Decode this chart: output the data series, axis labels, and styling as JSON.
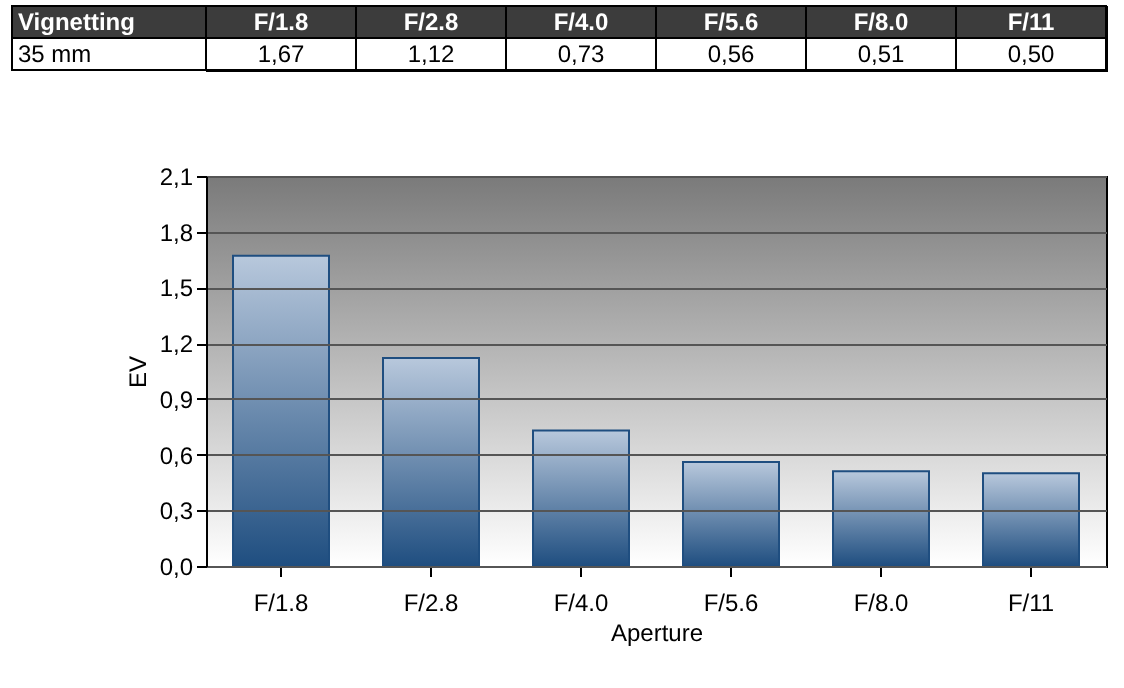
{
  "chart_data": {
    "type": "bar",
    "categories": [
      "F/1.8",
      "F/2.8",
      "F/4.0",
      "F/5.6",
      "F/8.0",
      "F/11"
    ],
    "values": [
      1.67,
      1.12,
      0.73,
      0.56,
      0.51,
      0.5
    ],
    "value_labels": [
      "1,67",
      "1,12",
      "0,73",
      "0,56",
      "0,51",
      "0,50"
    ],
    "color": "#1f4e80",
    "xlabel": "Aperture",
    "ylabel": "EV",
    "ylim": [
      0,
      2.1
    ],
    "yticks": [
      {
        "value": 0,
        "label": "0,0"
      },
      {
        "value": 0.3,
        "label": "0,3"
      },
      {
        "value": 0.6,
        "label": "0,6"
      },
      {
        "value": 0.9,
        "label": "0,9"
      },
      {
        "value": 1.2,
        "label": "1,2"
      },
      {
        "value": 1.5,
        "label": "1,5"
      },
      {
        "value": 1.8,
        "label": "1,8"
      },
      {
        "value": 2.1,
        "label": "2,1"
      }
    ],
    "annotations": [
      "Vignetting",
      "35 mm"
    ],
    "grid": "y"
  }
}
